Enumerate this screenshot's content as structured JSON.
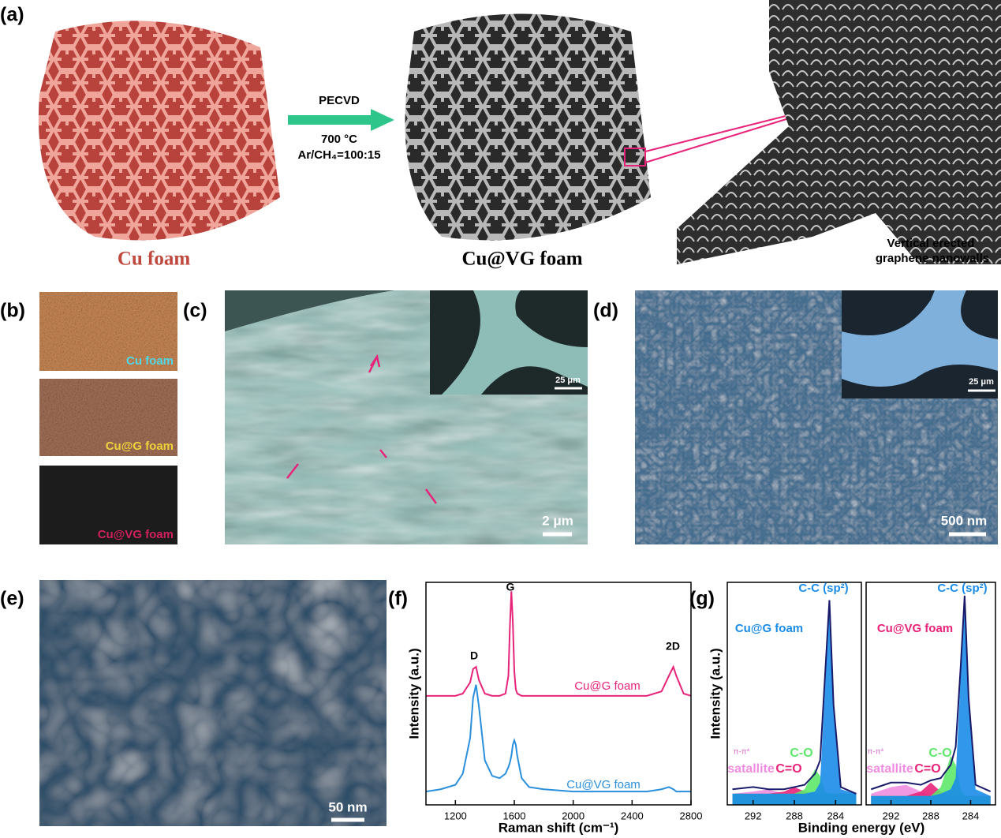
{
  "panel_a": {
    "label": "(a)",
    "process": "PECVD",
    "temperature": "700 °C",
    "gas": "Ar/CH₄=100:15",
    "left_caption": "Cu foam",
    "right_caption": "Cu@VG foam",
    "zoom_caption": [
      "Vertical erected",
      "graphene nanowalls"
    ]
  },
  "panel_b": {
    "label": "(b)",
    "swatches": [
      "Cu foam",
      "Cu@G foam",
      "Cu@VG foam"
    ]
  },
  "panel_c": {
    "label": "(c)",
    "scale_bar": "2 μm",
    "inset_scale_bar": "25 μm"
  },
  "panel_d": {
    "label": "(d)",
    "scale_bar": "500 nm",
    "inset_scale_bar": "25 μm"
  },
  "panel_e": {
    "label": "(e)",
    "scale_bar": "50 nm"
  },
  "chart_data": [
    {
      "type": "line",
      "panel_label": "(f)",
      "xlabel": "Raman shift (cm⁻¹)",
      "ylabel": "Intensity (a.u.)",
      "x": [
        1000,
        1100,
        1200,
        1250,
        1300,
        1320,
        1340,
        1360,
        1400,
        1450,
        1500,
        1540,
        1560,
        1570,
        1580,
        1590,
        1600,
        1610,
        1620,
        1650,
        1700,
        1800,
        2000,
        2200,
        2400,
        2500,
        2600,
        2650,
        2680,
        2700,
        2750,
        2800
      ],
      "xlim": [
        1000,
        2800
      ],
      "xticks": [
        1200,
        1600,
        2000,
        2400,
        2800
      ],
      "ylim": [
        0,
        100
      ],
      "annotations": [
        "D",
        "G",
        "2D"
      ],
      "series": [
        {
          "name": "Cu@G foam",
          "color": "#e8237a",
          "values": [
            49,
            49,
            49,
            50,
            55,
            61,
            62,
            56,
            50,
            49,
            49,
            50,
            58,
            80,
            96,
            82,
            60,
            52,
            50,
            49,
            49,
            49,
            49,
            49,
            49,
            49,
            51,
            58,
            62,
            58,
            50,
            49
          ]
        },
        {
          "name": "Cu@VG foam",
          "color": "#2a8fdc",
          "values": [
            6,
            7,
            9,
            14,
            30,
            48,
            54,
            44,
            20,
            13,
            12,
            14,
            17,
            19,
            22,
            27,
            29,
            27,
            22,
            12,
            8,
            7,
            6,
            6,
            6,
            6,
            7,
            8,
            7,
            6,
            6,
            6
          ]
        }
      ]
    },
    {
      "type": "area",
      "panel_label": "(g)",
      "xlabel": "Binding energy (eV)",
      "ylabel": "Intensity (a.u.)",
      "sample": "Cu@G foam",
      "annotations": [
        "π-π*"
      ],
      "x": [
        294,
        292,
        290.5,
        289,
        288,
        287,
        286,
        285.5,
        285,
        284.6,
        284.2,
        283.5,
        282
      ],
      "xlim": [
        294.5,
        281.5
      ],
      "xticks": [
        292,
        288,
        284
      ],
      "ylim": [
        0,
        100
      ],
      "series": [
        {
          "name": "satallite",
          "color": "#f08de0",
          "filled": true,
          "values": [
            5,
            6,
            7,
            5,
            5,
            5,
            5,
            5,
            5,
            5,
            5,
            5,
            5
          ]
        },
        {
          "name": "C=O",
          "color": "#e8237a",
          "filled": true,
          "values": [
            5,
            5,
            5,
            6,
            8,
            6,
            5,
            5,
            5,
            5,
            5,
            5,
            5
          ]
        },
        {
          "name": "C-O",
          "color": "#5ee86a",
          "filled": true,
          "values": [
            5,
            5,
            5,
            5,
            5,
            7,
            16,
            13,
            6,
            5,
            5,
            5,
            5
          ]
        },
        {
          "name": "C-C (sp²)",
          "color": "#1a8ce8",
          "filled": true,
          "values": [
            5,
            5,
            5,
            5,
            5,
            5,
            6,
            10,
            55,
            90,
            42,
            7,
            5
          ]
        },
        {
          "color": "#1a1a6a",
          "filled": false,
          "values": [
            7,
            8,
            7,
            7,
            8,
            9,
            14,
            20,
            60,
            92,
            45,
            8,
            5
          ]
        }
      ]
    },
    {
      "type": "area",
      "sample": "Cu@VG foam",
      "annotations": [
        "π-π*"
      ],
      "x": [
        294,
        292,
        290.5,
        289,
        288,
        287,
        286,
        285.5,
        285,
        284.6,
        284.2,
        283.5,
        282
      ],
      "xlim": [
        294.5,
        281.5
      ],
      "xticks": [
        292,
        288,
        284
      ],
      "ylim": [
        0,
        100
      ],
      "series": [
        {
          "name": "satallite",
          "color": "#f08de0",
          "filled": true,
          "values": [
            5,
            8,
            9,
            6,
            4,
            4,
            4,
            4,
            4,
            4,
            4,
            4,
            4
          ]
        },
        {
          "name": "C=O",
          "color": "#e8237a",
          "filled": true,
          "values": [
            4,
            4,
            4,
            6,
            10,
            6,
            4,
            4,
            4,
            4,
            4,
            4,
            4
          ]
        },
        {
          "name": "C-O",
          "color": "#5ee86a",
          "filled": true,
          "values": [
            4,
            4,
            4,
            4,
            4,
            8,
            22,
            18,
            7,
            4,
            4,
            4,
            4
          ]
        },
        {
          "name": "C-C (sp²)",
          "color": "#1a8ce8",
          "filled": true,
          "values": [
            4,
            4,
            4,
            4,
            4,
            5,
            7,
            12,
            58,
            92,
            45,
            7,
            4
          ]
        },
        {
          "color": "#1a1a6a",
          "filled": false,
          "values": [
            7,
            10,
            10,
            9,
            11,
            12,
            18,
            26,
            62,
            94,
            48,
            9,
            6
          ]
        }
      ]
    }
  ]
}
